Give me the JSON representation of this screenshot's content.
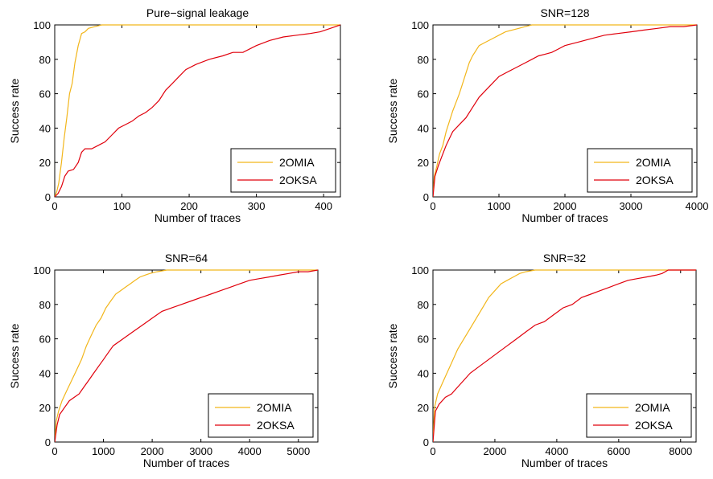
{
  "colors": {
    "2OMIA": "#f2b61b",
    "2OKSA": "#e0000c"
  },
  "chart_data": [
    {
      "type": "line",
      "title": "Pure−signal leakage",
      "xlabel": "Number of traces",
      "ylabel": "Success rate",
      "xlim": [
        0,
        425
      ],
      "ylim": [
        0,
        100
      ],
      "xticks": [
        0,
        100,
        200,
        300,
        400
      ],
      "yticks": [
        0,
        20,
        40,
        60,
        80,
        100
      ],
      "legend_position": "bottom-right",
      "series": [
        {
          "name": "2OMIA",
          "x": [
            0,
            3,
            6,
            10,
            14,
            18,
            22,
            26,
            30,
            35,
            40,
            45,
            50,
            60,
            70,
            425
          ],
          "y": [
            0,
            3,
            8,
            20,
            34,
            46,
            60,
            66,
            78,
            88,
            95,
            96,
            98,
            99,
            100,
            100
          ]
        },
        {
          "name": "2OKSA",
          "x": [
            0,
            5,
            10,
            15,
            20,
            28,
            35,
            40,
            45,
            55,
            65,
            75,
            85,
            95,
            105,
            115,
            125,
            135,
            145,
            155,
            165,
            175,
            185,
            195,
            210,
            230,
            250,
            265,
            280,
            300,
            320,
            340,
            360,
            380,
            395,
            410,
            425
          ],
          "y": [
            0,
            2,
            6,
            12,
            15,
            16,
            20,
            26,
            28,
            28,
            30,
            32,
            36,
            40,
            42,
            44,
            47,
            49,
            52,
            56,
            62,
            66,
            70,
            74,
            77,
            80,
            82,
            84,
            84,
            88,
            91,
            93,
            94,
            95,
            96,
            98,
            100
          ]
        }
      ]
    },
    {
      "type": "line",
      "title": "SNR=128",
      "xlabel": "Number of traces",
      "ylabel": "Success rate",
      "xlim": [
        0,
        4000
      ],
      "ylim": [
        0,
        100
      ],
      "xticks": [
        0,
        1000,
        2000,
        3000,
        4000
      ],
      "yticks": [
        0,
        20,
        40,
        60,
        80,
        100
      ],
      "legend_position": "bottom-right",
      "series": [
        {
          "name": "2OMIA",
          "x": [
            0,
            20,
            60,
            100,
            150,
            200,
            250,
            300,
            350,
            400,
            450,
            500,
            550,
            600,
            700,
            800,
            900,
            1000,
            1100,
            1200,
            1300,
            1400,
            1500,
            1700,
            4000
          ],
          "y": [
            0,
            12,
            18,
            25,
            30,
            38,
            44,
            50,
            55,
            60,
            66,
            72,
            78,
            82,
            88,
            90,
            92,
            94,
            96,
            97,
            98,
            99,
            100,
            100,
            100
          ]
        },
        {
          "name": "2OKSA",
          "x": [
            0,
            30,
            80,
            120,
            160,
            200,
            250,
            300,
            400,
            500,
            600,
            700,
            800,
            900,
            1000,
            1100,
            1200,
            1300,
            1400,
            1500,
            1600,
            1700,
            1800,
            1900,
            2000,
            2200,
            2400,
            2600,
            2800,
            3000,
            3200,
            3400,
            3600,
            3800,
            4000
          ],
          "y": [
            0,
            12,
            18,
            22,
            26,
            30,
            34,
            38,
            42,
            46,
            52,
            58,
            62,
            66,
            70,
            72,
            74,
            76,
            78,
            80,
            82,
            83,
            84,
            86,
            88,
            90,
            92,
            94,
            95,
            96,
            97,
            98,
            99,
            99,
            100
          ]
        }
      ]
    },
    {
      "type": "line",
      "title": "SNR=64",
      "xlabel": "Number of traces",
      "ylabel": "Success rate",
      "xlim": [
        0,
        5400
      ],
      "ylim": [
        0,
        100
      ],
      "xticks": [
        0,
        1000,
        2000,
        3000,
        4000,
        5000
      ],
      "yticks": [
        0,
        20,
        40,
        60,
        80,
        100
      ],
      "legend_position": "bottom-right",
      "series": [
        {
          "name": "2OMIA",
          "x": [
            0,
            30,
            80,
            150,
            250,
            350,
            450,
            550,
            650,
            750,
            850,
            950,
            1050,
            1150,
            1250,
            1350,
            1450,
            1550,
            1650,
            1750,
            1850,
            1950,
            2100,
            2300,
            5400
          ],
          "y": [
            0,
            12,
            18,
            24,
            30,
            36,
            42,
            48,
            56,
            62,
            68,
            72,
            78,
            82,
            86,
            88,
            90,
            92,
            94,
            96,
            97,
            98,
            99,
            100,
            100
          ]
        },
        {
          "name": "2OKSA",
          "x": [
            0,
            50,
            100,
            200,
            300,
            400,
            500,
            600,
            700,
            800,
            900,
            1000,
            1100,
            1200,
            1400,
            1600,
            1800,
            2000,
            2200,
            2400,
            2600,
            2800,
            3000,
            3200,
            3400,
            3600,
            3800,
            4000,
            4200,
            4400,
            4600,
            4800,
            5000,
            5200,
            5400
          ],
          "y": [
            0,
            10,
            16,
            20,
            24,
            26,
            28,
            32,
            36,
            40,
            44,
            48,
            52,
            56,
            60,
            64,
            68,
            72,
            76,
            78,
            80,
            82,
            84,
            86,
            88,
            90,
            92,
            94,
            95,
            96,
            97,
            98,
            99,
            99,
            100
          ]
        }
      ]
    },
    {
      "type": "line",
      "title": "SNR=32",
      "xlabel": "Number of traces",
      "ylabel": "Success rate",
      "xlim": [
        0,
        8500
      ],
      "ylim": [
        0,
        100
      ],
      "xticks": [
        0,
        2000,
        4000,
        6000,
        8000
      ],
      "yticks": [
        0,
        20,
        40,
        60,
        80,
        100
      ],
      "legend_position": "bottom-right",
      "series": [
        {
          "name": "2OMIA",
          "x": [
            0,
            50,
            150,
            300,
            450,
            600,
            800,
            1000,
            1200,
            1400,
            1600,
            1800,
            2000,
            2200,
            2400,
            2600,
            2800,
            3000,
            3300,
            8500
          ],
          "y": [
            0,
            20,
            28,
            34,
            40,
            46,
            54,
            60,
            66,
            72,
            78,
            84,
            88,
            92,
            94,
            96,
            98,
            99,
            100,
            100
          ]
        },
        {
          "name": "2OKSA",
          "x": [
            0,
            80,
            200,
            400,
            600,
            800,
            1000,
            1200,
            1500,
            1800,
            2100,
            2400,
            2700,
            3000,
            3300,
            3600,
            3900,
            4200,
            4500,
            4800,
            5100,
            5400,
            5700,
            6000,
            6300,
            6600,
            6900,
            7200,
            7400,
            7600,
            8000,
            8500
          ],
          "y": [
            0,
            18,
            22,
            26,
            28,
            32,
            36,
            40,
            44,
            48,
            52,
            56,
            60,
            64,
            68,
            70,
            74,
            78,
            80,
            84,
            86,
            88,
            90,
            92,
            94,
            95,
            96,
            97,
            98,
            100,
            100,
            100
          ]
        }
      ]
    }
  ]
}
